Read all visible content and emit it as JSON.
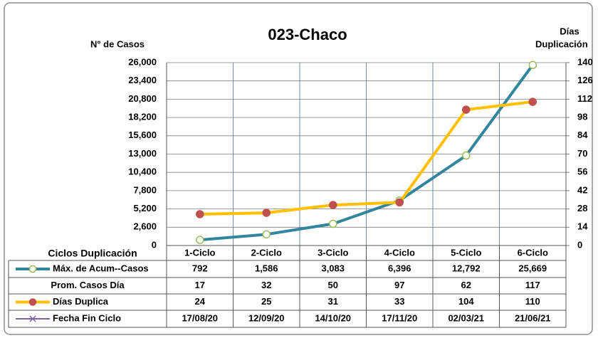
{
  "chart_data": {
    "type": "line",
    "title": "023-Chaco",
    "y_label": "N° de Casos",
    "y2_label_lines": [
      "Días",
      "Duplicación"
    ],
    "x_label": "Ciclos Duplicación",
    "categories": [
      "1-Ciclo",
      "2-Ciclo",
      "3-Ciclo",
      "4-Ciclo",
      "5-Ciclo",
      "6-Ciclo"
    ],
    "ylim": [
      0,
      26000
    ],
    "yticks": [
      0,
      {
        "value": 2600,
        "label": "2,600"
      },
      {
        "value": 5200,
        "label": "5,200"
      },
      {
        "value": 7800,
        "label": "7,800"
      },
      {
        "value": 10400,
        "label": "10,400"
      },
      {
        "value": 13000,
        "label": "13,000"
      },
      {
        "value": 15600,
        "label": "15,600"
      },
      {
        "value": 18200,
        "label": "18,200"
      },
      {
        "value": 20800,
        "label": "20,800"
      },
      {
        "value": 23400,
        "label": "23,400"
      },
      {
        "value": 26000,
        "label": "26,000"
      }
    ],
    "y2lim": [
      0,
      140
    ],
    "y2ticks": [
      0,
      14,
      28,
      42,
      56,
      70,
      84,
      98,
      112,
      126,
      140
    ],
    "grid": true,
    "series": [
      {
        "name": "Máx. de Acum--Casos",
        "color": "#31859c",
        "marker_fill": "#ffffff",
        "marker_stroke": "#9bbb59",
        "axis": "y",
        "plotted": true,
        "values": [
          792,
          1586,
          3083,
          6396,
          12792,
          25669
        ],
        "value_labels": [
          "792",
          "1,586",
          "3,083",
          "6,396",
          "12,792",
          "25,669"
        ]
      },
      {
        "name": "Prom. Casos Día",
        "plotted": false,
        "values": [
          17,
          32,
          50,
          97,
          62,
          117
        ]
      },
      {
        "name": "Días Duplica",
        "color": "#ffc000",
        "marker_fill": "#c0504d",
        "marker_stroke": "#c0504d",
        "axis": "y2",
        "plotted": true,
        "values": [
          24,
          25,
          31,
          33,
          104,
          110
        ]
      },
      {
        "name": "Fecha Fin Ciclo",
        "color": "#8064a2",
        "plotted": false,
        "values": [
          "17/08/20",
          "12/09/20",
          "14/10/20",
          "17/11/20",
          "02/03/21",
          "21/06/21"
        ]
      }
    ]
  }
}
